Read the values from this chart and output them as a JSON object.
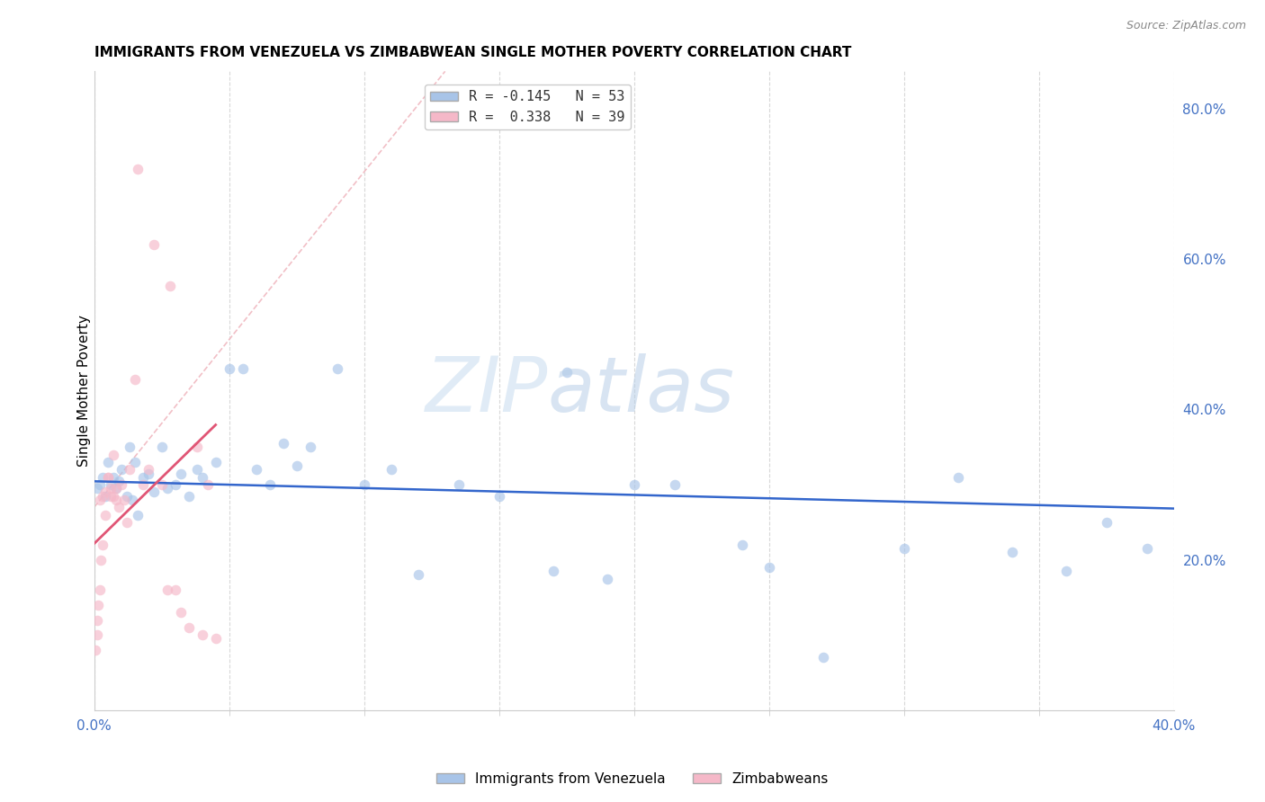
{
  "title": "IMMIGRANTS FROM VENEZUELA VS ZIMBABWEAN SINGLE MOTHER POVERTY CORRELATION CHART",
  "source": "Source: ZipAtlas.com",
  "ylabel": "Single Mother Poverty",
  "xlim": [
    0.0,
    0.4
  ],
  "ylim": [
    0.0,
    0.85
  ],
  "right_yticks": [
    0.2,
    0.4,
    0.6,
    0.8
  ],
  "xticks": [
    0.0,
    0.4
  ],
  "xticklabels": [
    "0.0%",
    "40.0%"
  ],
  "venezuela_color": "#a8c4e8",
  "zimbabwe_color": "#f5b8c8",
  "venezuela_line_color": "#3366cc",
  "zimbabwe_line_color": "#e05575",
  "diag_line_color": "#f0b8c0",
  "marker_size": 70,
  "marker_alpha": 0.65,
  "venezuela_x": [
    0.001,
    0.002,
    0.003,
    0.004,
    0.005,
    0.006,
    0.007,
    0.008,
    0.009,
    0.01,
    0.012,
    0.013,
    0.014,
    0.015,
    0.016,
    0.018,
    0.02,
    0.022,
    0.025,
    0.027,
    0.03,
    0.032,
    0.035,
    0.038,
    0.04,
    0.045,
    0.05,
    0.055,
    0.06,
    0.065,
    0.07,
    0.075,
    0.08,
    0.09,
    0.1,
    0.11,
    0.12,
    0.135,
    0.15,
    0.17,
    0.175,
    0.19,
    0.2,
    0.215,
    0.24,
    0.25,
    0.27,
    0.3,
    0.32,
    0.34,
    0.36,
    0.375,
    0.39
  ],
  "venezuela_y": [
    0.295,
    0.3,
    0.31,
    0.285,
    0.33,
    0.3,
    0.31,
    0.295,
    0.305,
    0.32,
    0.285,
    0.35,
    0.28,
    0.33,
    0.26,
    0.31,
    0.315,
    0.29,
    0.35,
    0.295,
    0.3,
    0.315,
    0.285,
    0.32,
    0.31,
    0.33,
    0.455,
    0.455,
    0.32,
    0.3,
    0.355,
    0.325,
    0.35,
    0.455,
    0.3,
    0.32,
    0.18,
    0.3,
    0.285,
    0.185,
    0.45,
    0.175,
    0.3,
    0.3,
    0.22,
    0.19,
    0.07,
    0.215,
    0.31,
    0.21,
    0.185,
    0.25,
    0.215
  ],
  "zimbabwe_x": [
    0.0005,
    0.001,
    0.001,
    0.0015,
    0.002,
    0.002,
    0.0025,
    0.003,
    0.003,
    0.004,
    0.004,
    0.005,
    0.005,
    0.006,
    0.006,
    0.007,
    0.007,
    0.008,
    0.008,
    0.009,
    0.01,
    0.011,
    0.012,
    0.013,
    0.015,
    0.016,
    0.018,
    0.02,
    0.022,
    0.025,
    0.027,
    0.028,
    0.03,
    0.032,
    0.035,
    0.038,
    0.04,
    0.042,
    0.045
  ],
  "zimbabwe_y": [
    0.08,
    0.1,
    0.12,
    0.14,
    0.16,
    0.28,
    0.2,
    0.22,
    0.285,
    0.26,
    0.29,
    0.31,
    0.31,
    0.285,
    0.295,
    0.34,
    0.285,
    0.295,
    0.28,
    0.27,
    0.3,
    0.28,
    0.25,
    0.32,
    0.44,
    0.72,
    0.3,
    0.32,
    0.62,
    0.3,
    0.16,
    0.565,
    0.16,
    0.13,
    0.11,
    0.35,
    0.1,
    0.3,
    0.095
  ],
  "watermark_zip": "ZIP",
  "watermark_atlas": "atlas",
  "background_color": "#ffffff",
  "grid_color": "#d8d8d8",
  "tick_color": "#4472c4",
  "title_fontsize": 11,
  "legend_label_1": "R = -0.145   N = 53",
  "legend_label_2": "R =  0.338   N = 39",
  "bottom_legend_1": "Immigrants from Venezuela",
  "bottom_legend_2": "Zimbabweans"
}
